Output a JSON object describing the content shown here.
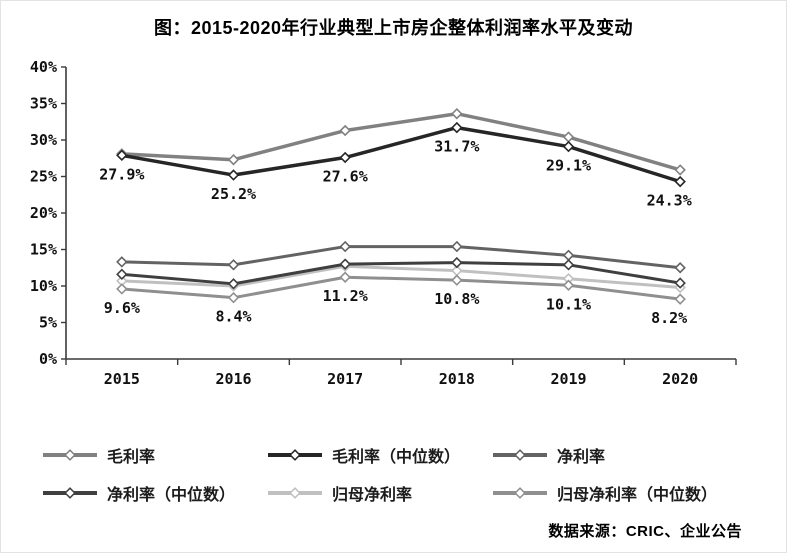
{
  "chart_data": {
    "type": "line",
    "title": "图：2015-2020年行业典型上市房企整体利润率水平及变动",
    "source": "数据来源：CRIC、企业公告",
    "categories": [
      "2015",
      "2016",
      "2017",
      "2018",
      "2019",
      "2020"
    ],
    "xlabel": "",
    "ylabel": "",
    "ylim": [
      0,
      40
    ],
    "grid": false,
    "marker": "diamond",
    "legend_position": "bottom",
    "y_axis": {
      "min": 0,
      "max": 40,
      "step": 5,
      "tick_labels": [
        "0%",
        "5%",
        "10%",
        "15%",
        "20%",
        "25%",
        "30%",
        "35%",
        "40%"
      ]
    },
    "series": [
      {
        "name": "毛利率",
        "color": "#818181",
        "values": [
          28.1,
          27.3,
          31.3,
          33.6,
          30.4,
          25.9
        ],
        "show_labels": false
      },
      {
        "name": "毛利率（中位数）",
        "color": "#262626",
        "values": [
          27.9,
          25.2,
          27.6,
          31.7,
          29.1,
          24.3
        ],
        "show_labels": true,
        "labels": [
          "27.9%",
          "25.2%",
          "27.6%",
          "31.7%",
          "29.1%",
          "24.3%"
        ]
      },
      {
        "name": "净利率",
        "color": "#636363",
        "values": [
          13.3,
          12.9,
          15.4,
          15.4,
          14.2,
          12.5
        ],
        "show_labels": false
      },
      {
        "name": "净利率（中位数）",
        "color": "#3f3f3f",
        "values": [
          11.6,
          10.3,
          13.0,
          13.2,
          12.9,
          10.4
        ],
        "show_labels": false
      },
      {
        "name": "归母净利率",
        "color": "#c0c0c0",
        "values": [
          10.7,
          10.0,
          12.7,
          12.1,
          11.0,
          9.8
        ],
        "show_labels": false
      },
      {
        "name": "归母净利率（中位数）",
        "color": "#8f8f8f",
        "values": [
          9.6,
          8.4,
          11.2,
          10.8,
          10.1,
          8.2
        ],
        "show_labels": true,
        "labels": [
          "9.6%",
          "8.4%",
          "11.2%",
          "10.8%",
          "10.1%",
          "8.2%"
        ]
      }
    ]
  }
}
